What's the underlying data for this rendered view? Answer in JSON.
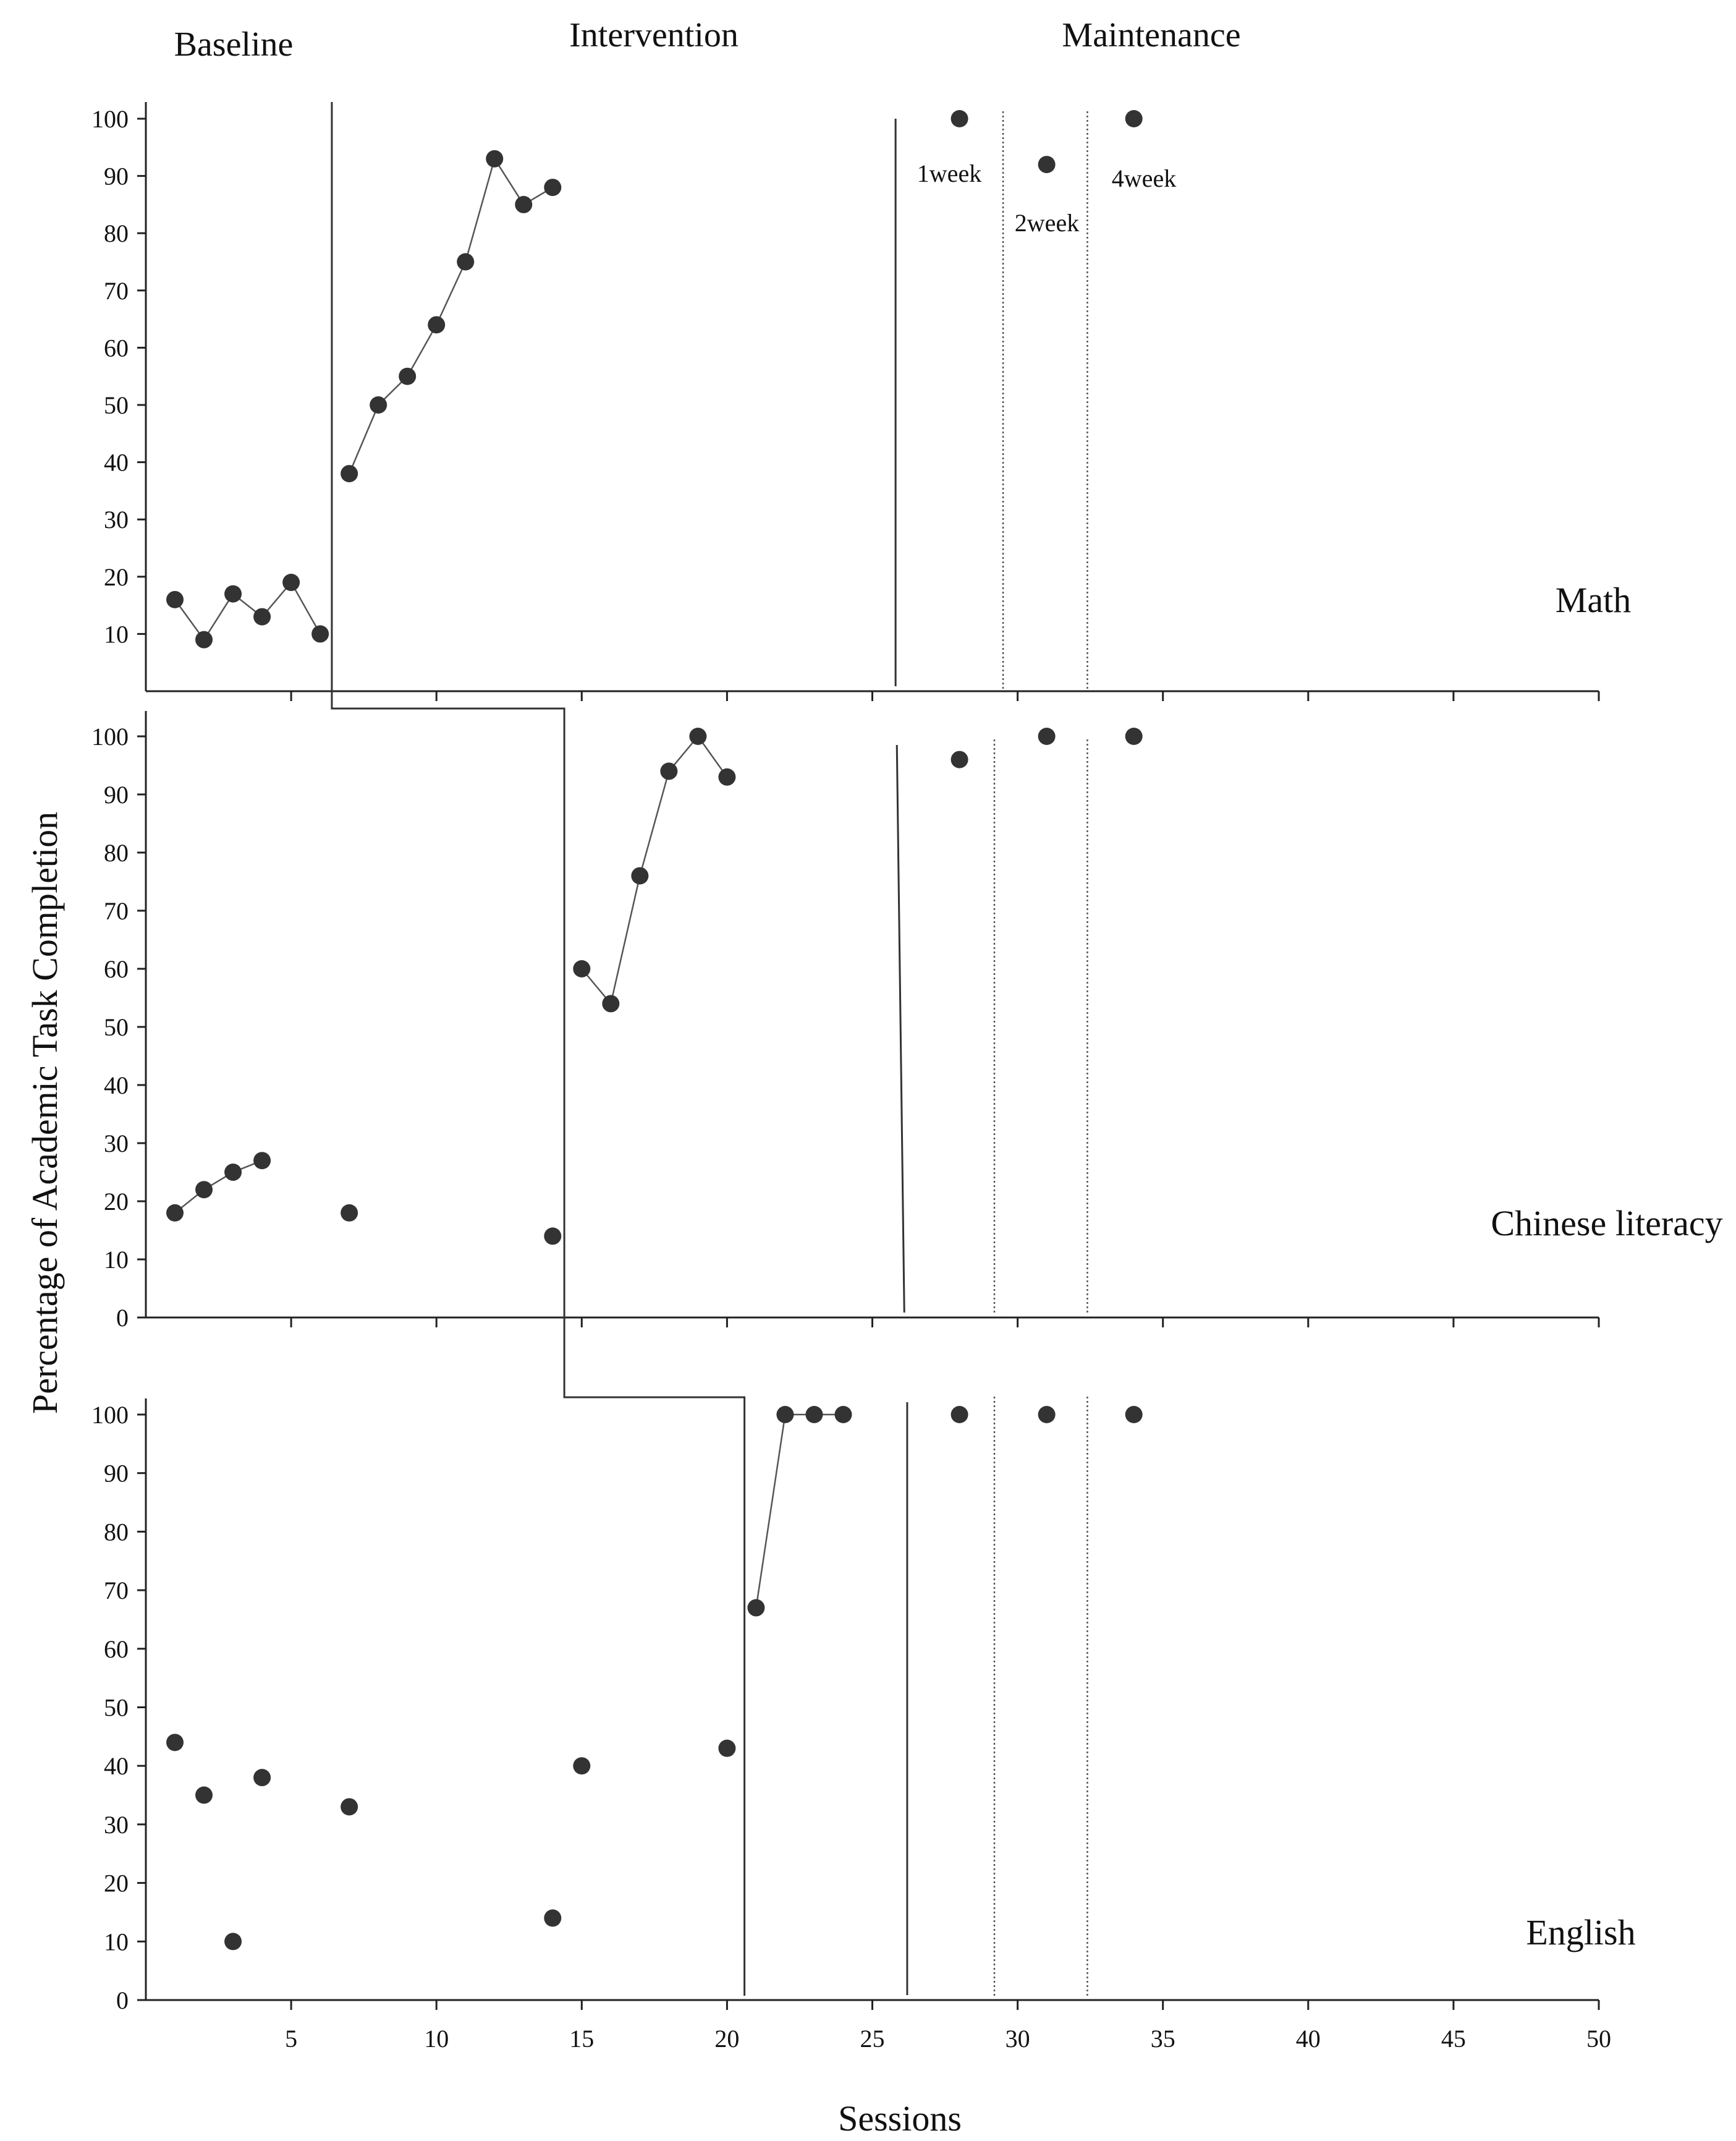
{
  "chart_data": {
    "type": "scatter",
    "design": "multiple-baseline across behaviors",
    "phase_labels": [
      "Baseline",
      "Intervention",
      "Maintenance"
    ],
    "xlabel": "Sessions",
    "ylabel": "Percentage of Academic Task Completion",
    "xlim": [
      0,
      50
    ],
    "ylim": [
      0,
      100
    ],
    "x_ticks": [
      5,
      10,
      15,
      20,
      25,
      30,
      35,
      40,
      45,
      50
    ],
    "maintenance_labels": [
      "1week",
      "2week",
      "4week"
    ],
    "panels": [
      {
        "name": "Math",
        "show_zero_tick": false,
        "y_ticks": [
          10,
          20,
          30,
          40,
          50,
          60,
          70,
          80,
          90,
          100
        ],
        "phase_change_x": 6.4,
        "maintenance_start_x": 25.8,
        "followup_dividers_x": [
          29.5,
          32.4
        ],
        "series": [
          {
            "name": "Baseline",
            "connected": true,
            "points": [
              [
                1,
                16
              ],
              [
                2,
                9
              ],
              [
                3,
                17
              ],
              [
                4,
                13
              ],
              [
                5,
                19
              ],
              [
                6,
                10
              ]
            ]
          },
          {
            "name": "Intervention",
            "connected": true,
            "points": [
              [
                7,
                38
              ],
              [
                8,
                50
              ],
              [
                9,
                55
              ],
              [
                10,
                64
              ],
              [
                11,
                75
              ],
              [
                12,
                93
              ],
              [
                13,
                85
              ],
              [
                14,
                88
              ]
            ]
          },
          {
            "name": "Maintenance",
            "connected": false,
            "points": [
              [
                28,
                100
              ],
              [
                31,
                92
              ],
              [
                34,
                100
              ]
            ]
          }
        ]
      },
      {
        "name": "Chinese literacy",
        "show_zero_tick": true,
        "y_ticks": [
          0,
          10,
          20,
          30,
          40,
          50,
          60,
          70,
          80,
          90,
          100
        ],
        "phase_change_x": 14.4,
        "maintenance_start_x": 26.1,
        "followup_dividers_x": [
          29.2,
          32.4
        ],
        "series": [
          {
            "name": "Baseline",
            "connected": true,
            "points": [
              [
                1,
                18
              ],
              [
                2,
                22
              ],
              [
                3,
                25
              ],
              [
                4,
                27
              ]
            ]
          },
          {
            "name": "Baseline probes",
            "connected": false,
            "points": [
              [
                7,
                18
              ],
              [
                14,
                14
              ]
            ]
          },
          {
            "name": "Intervention",
            "connected": true,
            "points": [
              [
                15,
                60
              ],
              [
                16,
                54
              ],
              [
                17,
                76
              ],
              [
                18,
                94
              ],
              [
                19,
                100
              ],
              [
                20,
                93
              ]
            ]
          },
          {
            "name": "Maintenance",
            "connected": false,
            "points": [
              [
                28,
                96
              ],
              [
                31,
                100
              ],
              [
                34,
                100
              ]
            ]
          }
        ]
      },
      {
        "name": "English",
        "show_zero_tick": true,
        "y_ticks": [
          0,
          10,
          20,
          30,
          40,
          50,
          60,
          70,
          80,
          90,
          100
        ],
        "phase_change_x": 20.6,
        "maintenance_start_x": 26.2,
        "followup_dividers_x": [
          29.2,
          32.4
        ],
        "series": [
          {
            "name": "Baseline probes",
            "connected": false,
            "points": [
              [
                1,
                44
              ],
              [
                2,
                35
              ],
              [
                3,
                10
              ],
              [
                4,
                38
              ],
              [
                7,
                33
              ],
              [
                14,
                14
              ],
              [
                15,
                40
              ],
              [
                20,
                43
              ]
            ]
          },
          {
            "name": "Intervention",
            "connected": true,
            "points": [
              [
                21,
                67
              ],
              [
                22,
                100
              ],
              [
                23,
                100
              ],
              [
                24,
                100
              ]
            ]
          },
          {
            "name": "Maintenance",
            "connected": false,
            "points": [
              [
                28,
                100
              ],
              [
                31,
                100
              ],
              [
                34,
                100
              ]
            ]
          }
        ]
      }
    ]
  }
}
